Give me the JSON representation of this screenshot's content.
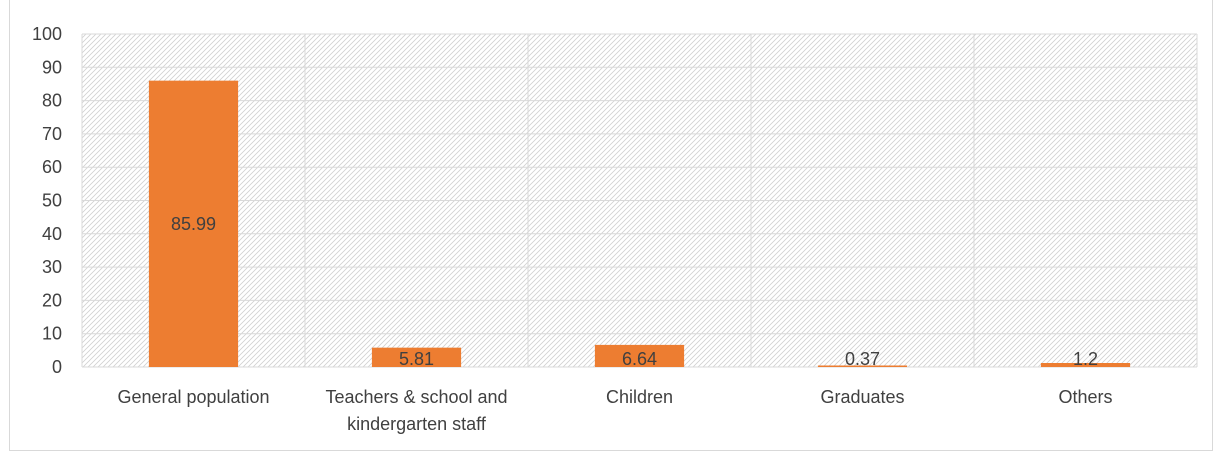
{
  "chart_data": {
    "type": "bar",
    "title": "",
    "xlabel": "",
    "ylabel": "",
    "categories": [
      [
        "General population"
      ],
      [
        "Teachers & school and",
        "kindergarten staff"
      ],
      [
        "Children"
      ],
      [
        "Graduates"
      ],
      [
        "Others"
      ]
    ],
    "values": [
      85.99,
      5.81,
      6.64,
      0.37,
      1.2
    ],
    "data_labels": [
      "85.99",
      "5.81",
      "6.64",
      "0.37",
      "1.2"
    ],
    "ylim": [
      0,
      100
    ],
    "yticks": [
      0,
      10,
      20,
      30,
      40,
      50,
      60,
      70,
      80,
      90,
      100
    ],
    "grid": true,
    "legend": "none",
    "colors": {
      "bar": "#ed7d31",
      "grid": "#d9d9d9",
      "axis_text": "#404040",
      "data_label": "#404040",
      "hatch": "#d0d0d0"
    }
  }
}
